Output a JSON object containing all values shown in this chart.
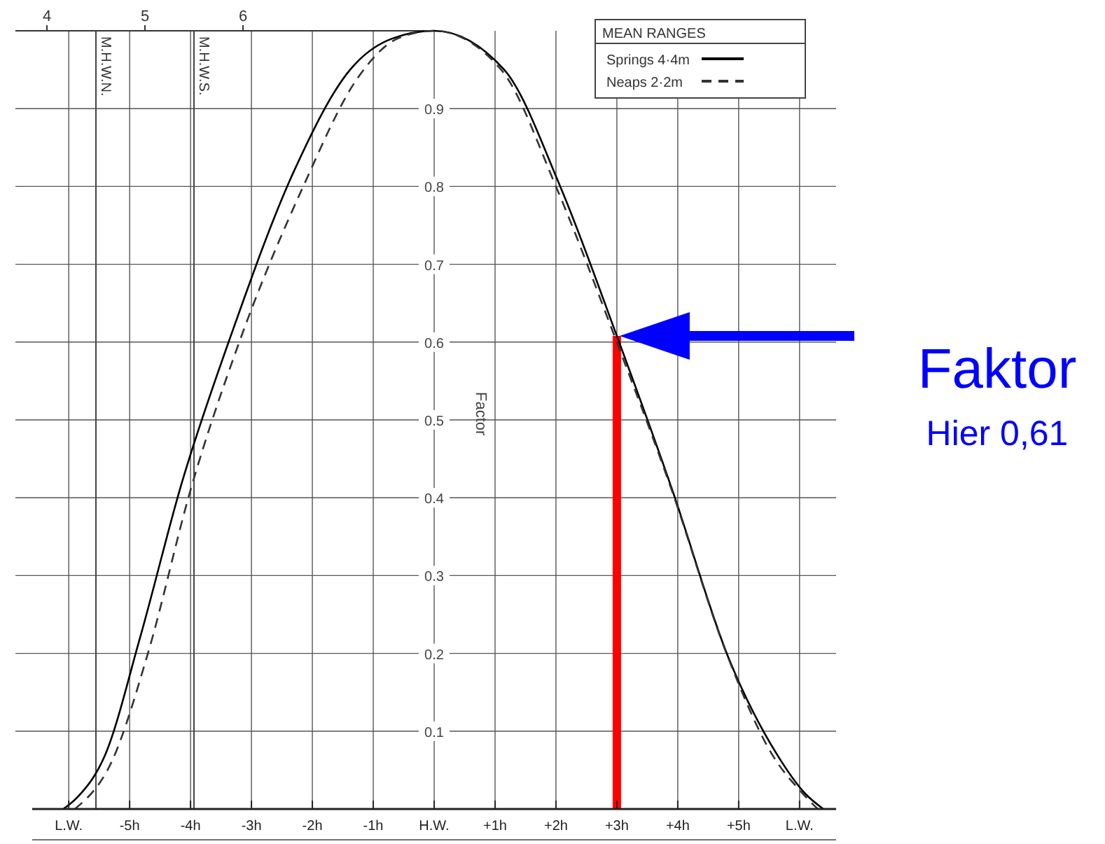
{
  "chart_data": {
    "type": "line",
    "xlabel": null,
    "ylabel": "Factor",
    "legend_title": "MEAN RANGES",
    "xlim": [
      -6.6,
      6.6
    ],
    "xticks": [
      {
        "value": -6,
        "label": "L.W."
      },
      {
        "value": -5,
        "label": "-5h"
      },
      {
        "value": -4,
        "label": "-4h"
      },
      {
        "value": -3,
        "label": "-3h"
      },
      {
        "value": -2,
        "label": "-2h"
      },
      {
        "value": -1,
        "label": "-1h"
      },
      {
        "value": 0,
        "label": "H.W."
      },
      {
        "value": 1,
        "label": "+1h"
      },
      {
        "value": 2,
        "label": "+2h"
      },
      {
        "value": 3,
        "label": "+3h"
      },
      {
        "value": 4,
        "label": "+4h"
      },
      {
        "value": 5,
        "label": "+5h"
      },
      {
        "value": 6,
        "label": "L.W."
      }
    ],
    "ylim": [
      0,
      1
    ],
    "yticks": [
      0.1,
      0.2,
      0.3,
      0.4,
      0.5,
      0.6,
      0.7,
      0.8,
      0.9
    ],
    "x2lim": [
      3.85,
      12.05
    ],
    "x2ticks": [
      4,
      5,
      6
    ],
    "grid": true,
    "legend": "top right",
    "marker": "none",
    "series": [
      {
        "name": "Springs 4·4m",
        "color": "#000000",
        "line_style": "solid",
        "x": [
          -6.09,
          -5.86,
          -5.4,
          -4.83,
          -4.14,
          -3.33,
          -2.3,
          -1.38,
          -0.69,
          0,
          1.15,
          2.07,
          2.99,
          3.91,
          4.83,
          5.63,
          6.09,
          6.39
        ],
        "values": [
          0,
          0.015,
          0.07,
          0.22,
          0.42,
          0.61,
          0.82,
          0.95,
          0.99,
          1,
          0.95,
          0.8,
          0.61,
          0.41,
          0.195,
          0.07,
          0.02,
          0
        ]
      },
      {
        "name": "Neaps 2·2m",
        "color": "#333333",
        "line_style": "dashed",
        "x": [
          -5.9,
          -5.3,
          -4.7,
          -4.0,
          -3.2,
          -2.15,
          -1.25,
          -0.6,
          0,
          1.1,
          2.0,
          2.95,
          3.9,
          4.8,
          5.55,
          6.05,
          6.3
        ],
        "values": [
          0,
          0.06,
          0.2,
          0.41,
          0.6,
          0.8,
          0.94,
          0.99,
          1,
          0.95,
          0.8,
          0.61,
          0.41,
          0.2,
          0.07,
          0.02,
          0
        ]
      }
    ],
    "ref_lines": [
      {
        "axis": "x",
        "value": 3,
        "label": null,
        "color": "#ff0000"
      },
      {
        "axis": "x2",
        "value": 4.5,
        "label": "M.H.W.N.",
        "color": "#444444"
      },
      {
        "axis": "x2",
        "value": 5.5,
        "label": "M.H.W.S.",
        "color": "#444444"
      }
    ],
    "annotations": [
      "Faktor",
      "Hier 0,61"
    ]
  }
}
